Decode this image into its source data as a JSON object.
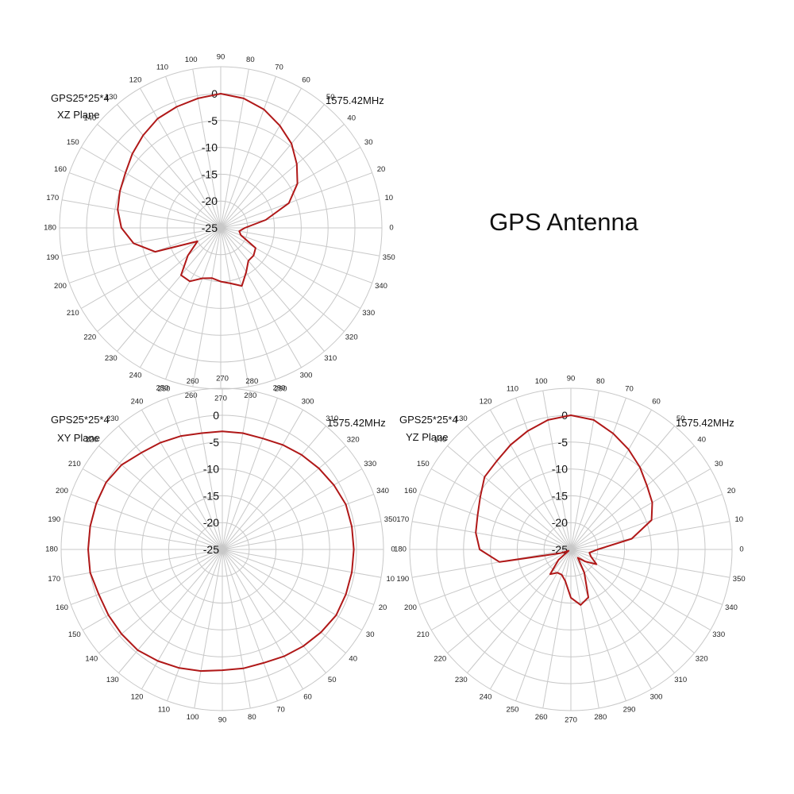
{
  "page": {
    "title": "GPS Antenna"
  },
  "chart_data": [
    {
      "type": "polar-line",
      "label_top_left_line1": "GPS25*25*4",
      "label_top_left_line2": "XZ Plane",
      "label_top_right": "1575.42MHz",
      "line_color": "#b01818",
      "radial_range": [
        -25,
        0
      ],
      "radial_ticks": [
        0,
        -5,
        -10,
        -15,
        -20,
        -25
      ],
      "angle_ticks_deg": [
        0,
        10,
        20,
        30,
        40,
        50,
        60,
        70,
        80,
        90,
        100,
        110,
        120,
        130,
        140,
        150,
        160,
        170,
        180,
        190,
        200,
        210,
        220,
        230,
        240,
        250,
        260,
        270,
        280,
        290,
        300,
        310,
        320,
        330,
        340,
        350
      ],
      "zero_angle_direction": "right",
      "angle_direction": "counterclockwise",
      "series": [
        {
          "angles_deg": [
            0,
            10,
            20,
            30,
            40,
            50,
            60,
            70,
            80,
            90,
            100,
            110,
            120,
            130,
            140,
            150,
            160,
            170,
            180,
            190,
            200,
            210,
            220,
            230,
            240,
            250,
            260,
            270,
            280,
            290,
            300,
            310,
            320,
            330,
            340,
            350
          ],
          "values_db": [
            -20.5,
            -16.5,
            -11.5,
            -8.5,
            -6.5,
            -4.5,
            -3,
            -1.5,
            -0.5,
            0,
            -0.5,
            -1,
            -1.5,
            -2.5,
            -3.5,
            -4.5,
            -5,
            -5.5,
            -6.5,
            -8.5,
            -12,
            -20,
            -17,
            -13.5,
            -13.5,
            -15,
            -15.5,
            -15,
            -14.5,
            -13.5,
            -15.5,
            -17,
            -17,
            -17.5,
            -21,
            -21.5
          ]
        }
      ]
    },
    {
      "type": "polar-line",
      "label_top_left_line1": "GPS25*25*4",
      "label_top_left_line2": "XY Plane",
      "label_top_right": "1575.42MHz",
      "line_color": "#b01818",
      "radial_range": [
        -25,
        0
      ],
      "radial_ticks": [
        0,
        -5,
        -10,
        -15,
        -20,
        -25
      ],
      "angle_ticks_deg": [
        0,
        10,
        20,
        30,
        40,
        50,
        60,
        70,
        80,
        90,
        100,
        110,
        120,
        130,
        140,
        150,
        160,
        170,
        180,
        190,
        200,
        210,
        220,
        230,
        240,
        250,
        260,
        270,
        280,
        290,
        300,
        310,
        320,
        330,
        340,
        350
      ],
      "zero_angle_direction": "right",
      "angle_direction": "clockwise",
      "series": [
        {
          "angles_deg": [
            0,
            10,
            20,
            30,
            40,
            50,
            60,
            70,
            80,
            90,
            100,
            110,
            120,
            130,
            140,
            150,
            160,
            170,
            180,
            190,
            200,
            210,
            220,
            230,
            240,
            250,
            260,
            270,
            280,
            290,
            300,
            310,
            320,
            330,
            340,
            350
          ],
          "values_db": [
            -0.5,
            -0.5,
            -0.5,
            -0.5,
            -1,
            -1.5,
            -2,
            -2.5,
            -2.5,
            -2.5,
            -2,
            -1.5,
            -1,
            -0.5,
            -0.5,
            -0.5,
            -0.5,
            0,
            0,
            0,
            0,
            0,
            -0.5,
            -1.5,
            -2,
            -2.5,
            -3,
            -3,
            -3,
            -3,
            -2.5,
            -2,
            -1.5,
            -1,
            -0.5,
            -0.5
          ]
        }
      ]
    },
    {
      "type": "polar-line",
      "label_top_left_line1": "GPS25*25*4",
      "label_top_left_line2": "YZ Plane",
      "label_top_right": "1575.42MHz",
      "line_color": "#b01818",
      "radial_range": [
        -25,
        0
      ],
      "radial_ticks": [
        0,
        -5,
        -10,
        -15,
        -20,
        -25
      ],
      "angle_ticks_deg": [
        0,
        10,
        20,
        30,
        40,
        50,
        60,
        70,
        80,
        90,
        100,
        110,
        120,
        130,
        140,
        150,
        160,
        170,
        180,
        190,
        200,
        210,
        220,
        230,
        240,
        250,
        260,
        270,
        280,
        290,
        300,
        310,
        320,
        330,
        340,
        350
      ],
      "zero_angle_direction": "right",
      "angle_direction": "counterclockwise",
      "series": [
        {
          "angles_deg": [
            0,
            10,
            20,
            30,
            40,
            50,
            60,
            70,
            80,
            90,
            100,
            110,
            120,
            130,
            140,
            150,
            160,
            170,
            180,
            190,
            200,
            210,
            220,
            230,
            240,
            250,
            260,
            270,
            280,
            290,
            300,
            310,
            320,
            330,
            340,
            350
          ],
          "values_db": [
            -20,
            -13.5,
            -9,
            -7.5,
            -6.5,
            -5,
            -3.5,
            -2,
            -0.5,
            0,
            -0.5,
            -1.5,
            -2.5,
            -3.5,
            -4,
            -5.5,
            -6.5,
            -7,
            -8,
            -11.5,
            -23,
            -24.5,
            -22,
            -19,
            -20,
            -20,
            -19,
            -16,
            -14.5,
            -15.5,
            -20,
            -23,
            -21.5,
            -19.5,
            -21,
            -21.5
          ]
        }
      ]
    }
  ]
}
